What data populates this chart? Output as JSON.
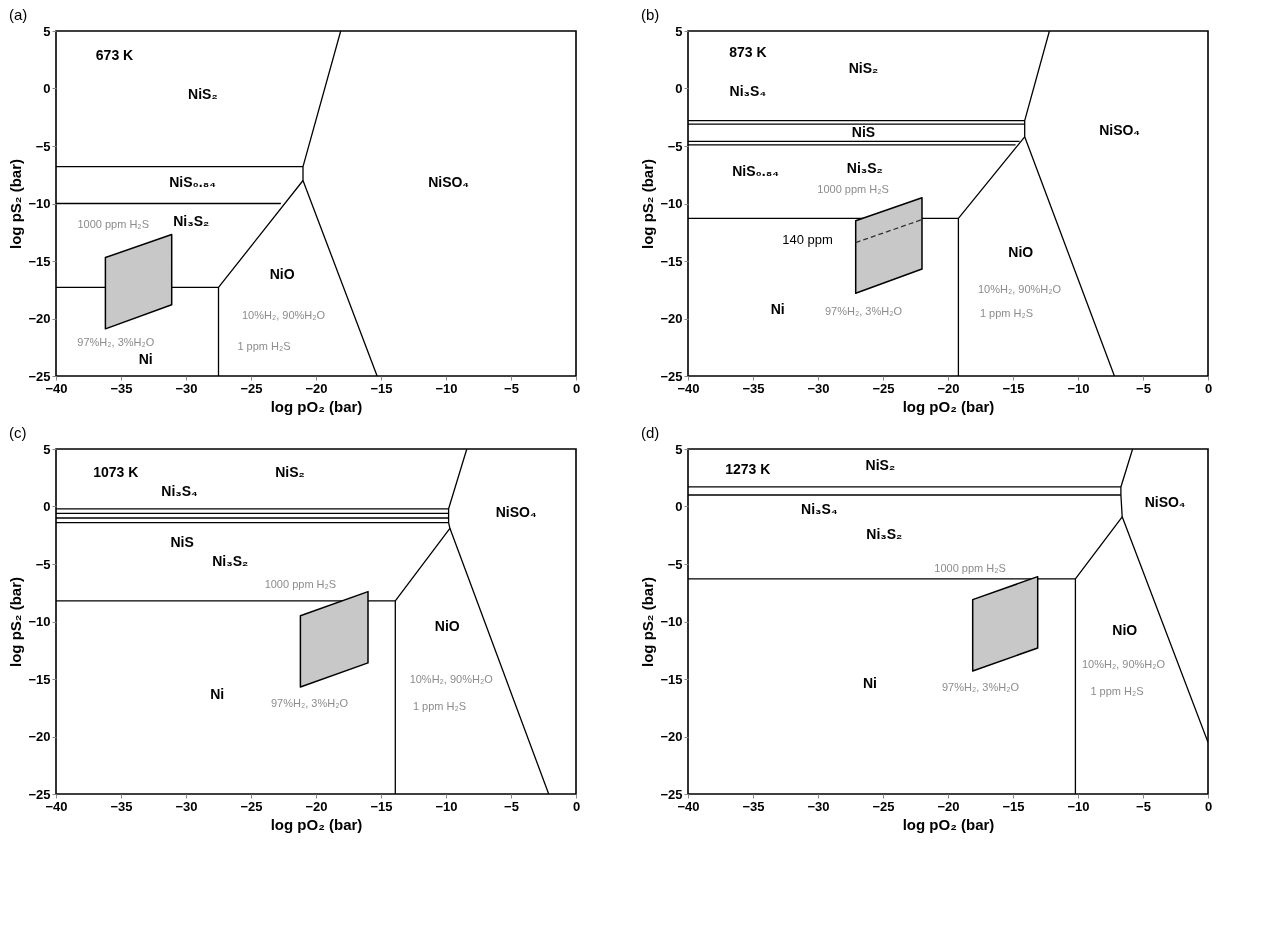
{
  "chart_data": [
    {
      "type": "line",
      "title": "(a)",
      "xlabel": "log pO₂ (bar)",
      "ylabel": "log pS₂ (bar)",
      "xlim": [
        -40,
        0
      ],
      "ylim": [
        -25,
        5
      ],
      "xticks": [
        -40,
        -35,
        -30,
        -25,
        -20,
        -15,
        -10,
        -5,
        0
      ],
      "yticks": [
        -25,
        -20,
        -15,
        -10,
        -5,
        0,
        5
      ],
      "series": [
        {
          "color": "#000000",
          "x": [
            -18.1,
            -21,
            -21,
            -15.3
          ],
          "values": [
            5,
            -6.8,
            -8,
            -25
          ]
        },
        {
          "color": "#000000",
          "x": [
            -40,
            -21
          ],
          "values": [
            -6.8,
            -6.8
          ]
        },
        {
          "color": "#000000",
          "x": [
            -40,
            -22.7
          ],
          "values": [
            -10,
            -10
          ]
        },
        {
          "color": "#000000",
          "x": [
            -40,
            -27.5,
            -21
          ],
          "values": [
            -17.3,
            -17.3,
            -8
          ]
        },
        {
          "color": "#000000",
          "x": [
            -27.5,
            -27.5
          ],
          "values": [
            -17.3,
            -25
          ]
        },
        {
          "color": "#c8c8c8",
          "x": [
            -36.2,
            -31.1
          ],
          "values": [
            null,
            null
          ],
          "lower": [
            -20.9,
            -18.8
          ],
          "upper": [
            -14.7,
            -12.7
          ]
        }
      ],
      "annotations": [
        "673 K",
        "NiS₂",
        "NiS₀.₈₄",
        "Ni₃S₂",
        "NiO",
        "NiSO₄",
        "Ni",
        "1000 ppm H₂S",
        "10%H₂, 90%H₂O",
        "97%H₂, 3%H₂O",
        "1 ppm H₂S"
      ]
    },
    {
      "type": "line",
      "title": "(b)",
      "xlabel": "log pO₂ (bar)",
      "ylabel": "log pS₂ (bar)",
      "xlim": [
        -40,
        0
      ],
      "ylim": [
        -25,
        5
      ],
      "xticks": [
        -40,
        -35,
        -30,
        -25,
        -20,
        -15,
        -10,
        -5,
        0
      ],
      "yticks": [
        -25,
        -20,
        -15,
        -10,
        -5,
        0,
        5
      ],
      "series": [
        {
          "color": "#000000",
          "x": [
            -12.2,
            -14.1,
            -14.1,
            -7.2
          ],
          "values": [
            5,
            -2.8,
            -4.2,
            -25
          ]
        },
        {
          "color": "#000000",
          "x": [
            -40,
            -14.1
          ],
          "values": [
            -2.8,
            -2.8
          ]
        },
        {
          "color": "#000000",
          "x": [
            -40,
            -14.1
          ],
          "values": [
            -3.1,
            -3.1
          ]
        },
        {
          "color": "#000000",
          "x": [
            -40,
            -14.5
          ],
          "values": [
            -4.6,
            -4.6
          ]
        },
        {
          "color": "#000000",
          "x": [
            -40,
            -14.8
          ],
          "values": [
            -4.9,
            -4.9
          ]
        },
        {
          "color": "#000000",
          "x": [
            -40,
            -19.2,
            -14.1
          ],
          "values": [
            -11.3,
            -11.3,
            -4.2
          ]
        },
        {
          "color": "#000000",
          "x": [
            -19.2,
            -19.2
          ],
          "values": [
            -11.3,
            -25
          ]
        },
        {
          "color": "#c8c8c8",
          "x": [
            -27.1,
            -22.0
          ],
          "values": [
            null,
            null
          ],
          "lower": [
            -17.8,
            -15.7
          ],
          "upper": [
            -11.5,
            -9.5
          ]
        },
        {
          "color": "#333333",
          "line_style": "dashed",
          "x": [
            -27.1,
            -22.0
          ],
          "values": [
            -13.4,
            -11.4
          ]
        }
      ],
      "annotations": [
        "873 K",
        "NiS₂",
        "Ni₃S₄",
        "NiS",
        "NiS₀.₈₄",
        "Ni₃S₂",
        "1000 ppm H₂S",
        "140 ppm",
        "NiO",
        "NiSO₄",
        "Ni",
        "10%H₂, 90%H₂O",
        "97%H₂, 3%H₂O",
        "1 ppm H₂S"
      ]
    },
    {
      "type": "line",
      "title": "(c)",
      "xlabel": "log pO₂ (bar)",
      "ylabel": "log pS₂ (bar)",
      "xlim": [
        -40,
        0
      ],
      "ylim": [
        -25,
        5
      ],
      "xticks": [
        -40,
        -35,
        -30,
        -25,
        -20,
        -15,
        -10,
        -5,
        0
      ],
      "yticks": [
        -25,
        -20,
        -15,
        -10,
        -5,
        0,
        5
      ],
      "series": [
        {
          "color": "#000000",
          "x": [
            -8.4,
            -9.8,
            -9.8,
            -9.7,
            -2.1
          ],
          "values": [
            5,
            -0.2,
            -1.4,
            -1.9,
            -25
          ]
        },
        {
          "color": "#000000",
          "x": [
            -40,
            -9.8
          ],
          "values": [
            -0.2,
            -0.2
          ]
        },
        {
          "color": "#000000",
          "x": [
            -40,
            -9.8
          ],
          "values": [
            -0.6,
            -0.6
          ]
        },
        {
          "color": "#000000",
          "x": [
            -40,
            -9.8
          ],
          "values": [
            -1.0,
            -1.0
          ]
        },
        {
          "color": "#000000",
          "x": [
            -40,
            -9.8
          ],
          "values": [
            -1.4,
            -1.4
          ]
        },
        {
          "color": "#000000",
          "x": [
            -40,
            -13.9,
            -9.7
          ],
          "values": [
            -8.2,
            -8.2,
            -1.9
          ]
        },
        {
          "color": "#000000",
          "x": [
            -13.9,
            -13.9
          ],
          "values": [
            -8.2,
            -25
          ]
        },
        {
          "color": "#c8c8c8",
          "x": [
            -21.2,
            -16.0
          ],
          "values": [
            null,
            null
          ],
          "lower": [
            -15.7,
            -13.6
          ],
          "upper": [
            -9.5,
            -7.4
          ]
        }
      ],
      "annotations": [
        "1073 K",
        "NiS₂",
        "Ni₃S₄",
        "NiS",
        "Ni₃S₂",
        "1000 ppm H₂S",
        "NiO",
        "NiSO₄",
        "Ni",
        "10%H₂, 90%H₂O",
        "97%H₂, 3%H₂O",
        "1 ppm H₂S"
      ]
    },
    {
      "type": "line",
      "title": "(d)",
      "xlabel": "log pO₂ (bar)",
      "ylabel": "log pS₂ (bar)",
      "xlim": [
        -40,
        0
      ],
      "ylim": [
        -25,
        5
      ],
      "xticks": [
        -40,
        -35,
        -30,
        -25,
        -20,
        -15,
        -10,
        -5,
        0
      ],
      "yticks": [
        -25,
        -20,
        -15,
        -10,
        -5,
        0,
        5
      ],
      "series": [
        {
          "color": "#000000",
          "x": [
            -5.8,
            -6.7,
            -6.7,
            -6.6,
            0
          ],
          "values": [
            5,
            1.7,
            1.0,
            -0.9,
            -20.5
          ]
        },
        {
          "color": "#000000",
          "x": [
            -40,
            -6.7
          ],
          "values": [
            1.7,
            1.7
          ]
        },
        {
          "color": "#000000",
          "x": [
            -40,
            -6.7
          ],
          "values": [
            1.0,
            1.0
          ]
        },
        {
          "color": "#000000",
          "x": [
            -40,
            -10.2,
            -6.6
          ],
          "values": [
            -6.3,
            -6.3,
            -0.9
          ]
        },
        {
          "color": "#000000",
          "x": [
            -10.2,
            -10.2
          ],
          "values": [
            -6.3,
            -25
          ]
        },
        {
          "color": "#c8c8c8",
          "x": [
            -18.1,
            -13.1
          ],
          "values": [
            null,
            null
          ],
          "lower": [
            -14.3,
            -12.3
          ],
          "upper": [
            -8.1,
            -6.1
          ]
        }
      ],
      "annotations": [
        "1273 K",
        "NiS₂",
        "Ni₃S₄",
        "Ni₃S₂",
        "1000 ppm H₂S",
        "NiO",
        "NiSO₄",
        "Ni",
        "10%H₂, 90%H₂O",
        "97%H₂, 3%H₂O",
        "1 ppm H₂S"
      ]
    }
  ]
}
